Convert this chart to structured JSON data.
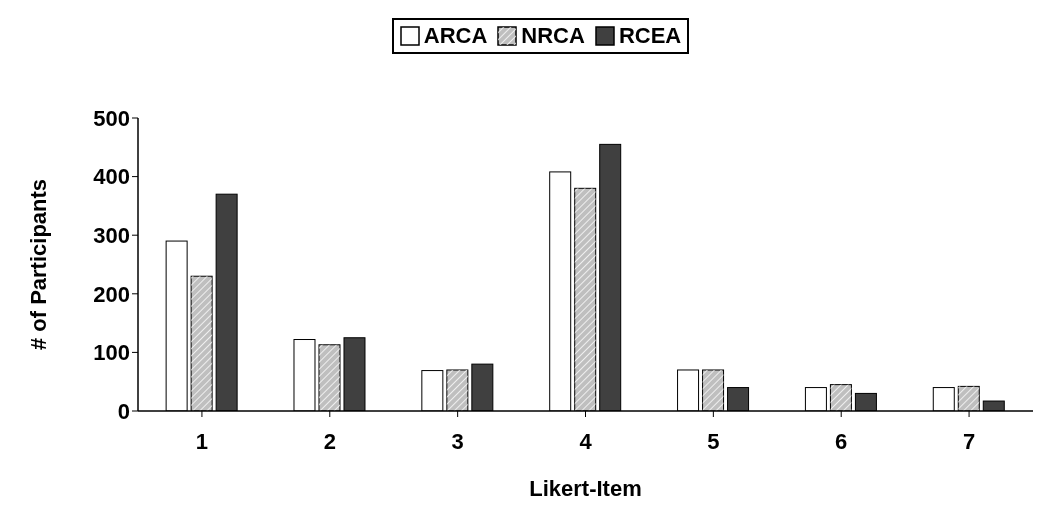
{
  "chart_data": {
    "type": "bar",
    "xlabel": "Likert-Item",
    "ylabel": "# of Participants",
    "categories": [
      "1",
      "2",
      "3",
      "4",
      "5",
      "6",
      "7"
    ],
    "series": [
      {
        "name": "ARCA",
        "color": "#ffffff",
        "values": [
          290,
          122,
          69,
          408,
          70,
          40,
          40
        ]
      },
      {
        "name": "NRCA",
        "color": "#bfbfbf",
        "values": [
          230,
          113,
          70,
          380,
          70,
          45,
          42
        ]
      },
      {
        "name": "RCEA",
        "color": "#404040",
        "values": [
          370,
          125,
          80,
          455,
          40,
          30,
          17
        ]
      }
    ],
    "ylim": [
      0,
      500
    ],
    "yticks": [
      0,
      100,
      200,
      300,
      400,
      500
    ],
    "grid": false,
    "legend": "top"
  }
}
